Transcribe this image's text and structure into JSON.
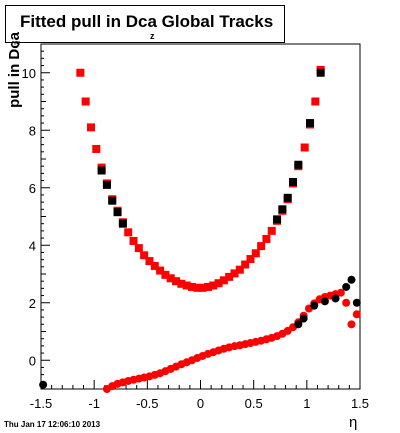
{
  "title": {
    "main": "Fitted pull in Dca Global Tracks",
    "subscript": "z"
  },
  "axes": {
    "ylabel": "pull in Dca",
    "ylabel_subscript": "z",
    "xlabel": "η"
  },
  "timestamp": "Thu Jan 17 12:06:10 2013",
  "colors": {
    "series_red": "#ff0000",
    "series_black": "#000000"
  },
  "chart_data": {
    "type": "scatter",
    "title": "Fitted pull in Dca Global Tracks",
    "xlabel": "η",
    "ylabel": "pull in Dca z",
    "xlim": [
      -1.5,
      1.5
    ],
    "ylim": [
      -1.0,
      11.0
    ],
    "xticks": [
      -1.5,
      -1,
      -0.5,
      0,
      0.5,
      1,
      1.5
    ],
    "xtick_labels": [
      "-1.5",
      "-1",
      "-0.5",
      "0",
      "0.5",
      "1",
      "1.5"
    ],
    "yticks": [
      0,
      2,
      4,
      6,
      8,
      10
    ],
    "ytick_labels": [
      "0",
      "2",
      "4",
      "6",
      "8",
      "10"
    ],
    "grid": false,
    "series": [
      {
        "marker": "square",
        "color": "#ff0000",
        "points": [
          [
            -1.13,
            10.0
          ],
          [
            -1.08,
            9.0
          ],
          [
            -1.03,
            8.1
          ],
          [
            -0.98,
            7.35
          ],
          [
            -0.93,
            6.7
          ],
          [
            -0.88,
            6.15
          ],
          [
            -0.83,
            5.6
          ],
          [
            -0.78,
            5.2
          ],
          [
            -0.73,
            4.8
          ],
          [
            -0.68,
            4.45
          ],
          [
            -0.63,
            4.15
          ],
          [
            -0.58,
            3.9
          ],
          [
            -0.53,
            3.65
          ],
          [
            -0.48,
            3.45
          ],
          [
            -0.43,
            3.28
          ],
          [
            -0.38,
            3.12
          ],
          [
            -0.33,
            2.97
          ],
          [
            -0.28,
            2.85
          ],
          [
            -0.23,
            2.75
          ],
          [
            -0.18,
            2.66
          ],
          [
            -0.13,
            2.6
          ],
          [
            -0.08,
            2.55
          ],
          [
            -0.03,
            2.52
          ],
          [
            0.02,
            2.52
          ],
          [
            0.07,
            2.55
          ],
          [
            0.12,
            2.6
          ],
          [
            0.17,
            2.68
          ],
          [
            0.22,
            2.78
          ],
          [
            0.27,
            2.9
          ],
          [
            0.32,
            3.02
          ],
          [
            0.37,
            3.15
          ],
          [
            0.42,
            3.33
          ],
          [
            0.47,
            3.52
          ],
          [
            0.52,
            3.72
          ],
          [
            0.57,
            3.97
          ],
          [
            0.62,
            4.22
          ],
          [
            0.67,
            4.5
          ],
          [
            0.72,
            4.85
          ],
          [
            0.77,
            5.2
          ],
          [
            0.82,
            5.6
          ],
          [
            0.87,
            6.15
          ],
          [
            0.92,
            6.75
          ],
          [
            0.98,
            7.4
          ],
          [
            1.03,
            8.2
          ],
          [
            1.08,
            9.0
          ],
          [
            1.13,
            10.1
          ]
        ]
      },
      {
        "marker": "square",
        "color": "#000000",
        "points": [
          [
            -0.93,
            6.6
          ],
          [
            -0.88,
            6.1
          ],
          [
            -0.83,
            5.55
          ],
          [
            -0.78,
            5.15
          ],
          [
            -0.73,
            4.75
          ],
          [
            0.72,
            4.9
          ],
          [
            0.77,
            5.25
          ],
          [
            0.82,
            5.65
          ],
          [
            0.87,
            6.2
          ],
          [
            0.92,
            6.8
          ],
          [
            1.03,
            8.25
          ],
          [
            1.13,
            10.0
          ]
        ]
      },
      {
        "marker": "circle",
        "color": "#ff0000",
        "points": [
          [
            -0.88,
            -1.0
          ],
          [
            -0.83,
            -0.9
          ],
          [
            -0.78,
            -0.82
          ],
          [
            -0.73,
            -0.77
          ],
          [
            -0.68,
            -0.72
          ],
          [
            -0.63,
            -0.68
          ],
          [
            -0.58,
            -0.64
          ],
          [
            -0.53,
            -0.6
          ],
          [
            -0.48,
            -0.56
          ],
          [
            -0.43,
            -0.51
          ],
          [
            -0.38,
            -0.45
          ],
          [
            -0.33,
            -0.38
          ],
          [
            -0.28,
            -0.3
          ],
          [
            -0.23,
            -0.22
          ],
          [
            -0.18,
            -0.14
          ],
          [
            -0.13,
            -0.07
          ],
          [
            -0.08,
            0.0
          ],
          [
            -0.03,
            0.08
          ],
          [
            0.02,
            0.15
          ],
          [
            0.07,
            0.22
          ],
          [
            0.12,
            0.28
          ],
          [
            0.17,
            0.34
          ],
          [
            0.22,
            0.4
          ],
          [
            0.27,
            0.45
          ],
          [
            0.32,
            0.49
          ],
          [
            0.37,
            0.52
          ],
          [
            0.42,
            0.56
          ],
          [
            0.47,
            0.6
          ],
          [
            0.52,
            0.64
          ],
          [
            0.57,
            0.68
          ],
          [
            0.62,
            0.73
          ],
          [
            0.67,
            0.78
          ],
          [
            0.72,
            0.84
          ],
          [
            0.77,
            0.92
          ],
          [
            0.82,
            1.02
          ],
          [
            0.87,
            1.15
          ],
          [
            0.92,
            1.32
          ],
          [
            0.97,
            1.55
          ],
          [
            1.02,
            1.8
          ],
          [
            1.07,
            1.98
          ],
          [
            1.12,
            2.12
          ],
          [
            1.17,
            2.2
          ],
          [
            1.22,
            2.25
          ],
          [
            1.27,
            2.3
          ],
          [
            1.32,
            2.35
          ],
          [
            1.37,
            2.0
          ],
          [
            1.42,
            1.25
          ],
          [
            1.47,
            1.6
          ]
        ]
      },
      {
        "marker": "circle",
        "color": "#000000",
        "points": [
          [
            -1.48,
            -0.85
          ],
          [
            0.92,
            1.25
          ],
          [
            0.97,
            1.45
          ],
          [
            1.07,
            1.9
          ],
          [
            1.17,
            2.05
          ],
          [
            1.27,
            2.15
          ],
          [
            1.37,
            2.55
          ],
          [
            1.42,
            2.8
          ],
          [
            1.47,
            2.0
          ]
        ]
      }
    ]
  }
}
